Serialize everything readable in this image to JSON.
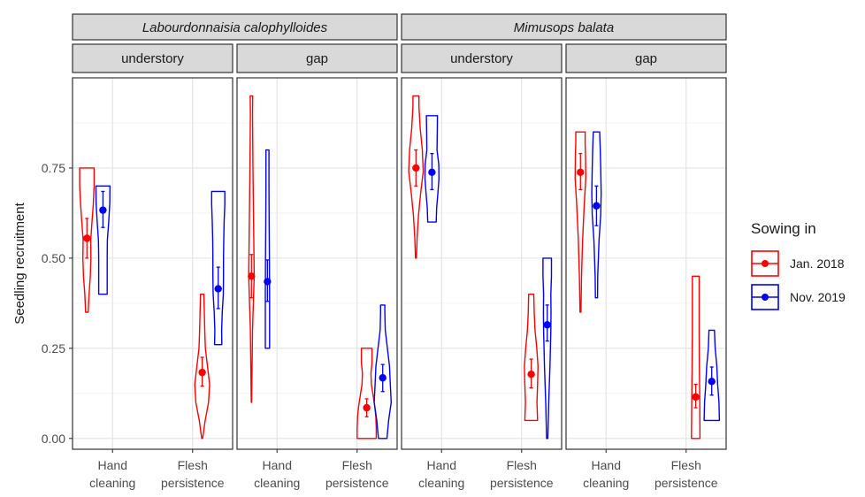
{
  "chart_data": {
    "type": "violin",
    "ylabel": "Seedling recruitment",
    "ylim": [
      -0.03,
      1.0
    ],
    "y_ticks": [
      {
        "value": 0.0,
        "label": "0.00"
      },
      {
        "value": 0.25,
        "label": "0.25"
      },
      {
        "value": 0.5,
        "label": "0.50"
      },
      {
        "value": 0.75,
        "label": "0.75"
      }
    ],
    "categories": [
      {
        "line1": "Hand",
        "line2": "cleaning"
      },
      {
        "line1": "Flesh",
        "line2": "persistence"
      }
    ],
    "legend": {
      "title": "Sowing in",
      "placement": "right",
      "entries": [
        {
          "name": "Jan. 2018",
          "color": "#ff0000"
        },
        {
          "name": "Nov. 2019",
          "color": "#0000ff"
        }
      ]
    },
    "grid": true,
    "species": [
      {
        "name": "Labourdonnaisia calophylloides",
        "italic": true
      },
      {
        "name": "Mimusops balata",
        "italic": true
      }
    ],
    "panels": [
      {
        "species": 0,
        "habitat": "understory",
        "violins": [
          {
            "category": 0,
            "series": 0,
            "min": 0.35,
            "max": 0.75,
            "mean": 0.555,
            "err_low": 0.5,
            "err_high": 0.61,
            "profile": [
              [
                0.35,
                0.06
              ],
              [
                0.4,
                0.1
              ],
              [
                0.45,
                0.16
              ],
              [
                0.5,
                0.19
              ],
              [
                0.55,
                0.18
              ],
              [
                0.6,
                0.24
              ],
              [
                0.65,
                0.3
              ],
              [
                0.7,
                0.34
              ],
              [
                0.75,
                0.34
              ]
            ]
          },
          {
            "category": 0,
            "series": 1,
            "min": 0.4,
            "max": 0.7,
            "mean": 0.633,
            "err_low": 0.585,
            "err_high": 0.685,
            "profile": [
              [
                0.4,
                0.2
              ],
              [
                0.45,
                0.2
              ],
              [
                0.5,
                0.2
              ],
              [
                0.55,
                0.21
              ],
              [
                0.6,
                0.27
              ],
              [
                0.65,
                0.32
              ],
              [
                0.7,
                0.33
              ]
            ]
          },
          {
            "category": 1,
            "series": 0,
            "min": 0.0,
            "max": 0.4,
            "mean": 0.183,
            "err_low": 0.145,
            "err_high": 0.225,
            "profile": [
              [
                0.0,
                0.02
              ],
              [
                0.05,
                0.14
              ],
              [
                0.1,
                0.3
              ],
              [
                0.15,
                0.35
              ],
              [
                0.2,
                0.25
              ],
              [
                0.25,
                0.15
              ],
              [
                0.3,
                0.12
              ],
              [
                0.35,
                0.1
              ],
              [
                0.4,
                0.08
              ]
            ]
          },
          {
            "category": 1,
            "series": 1,
            "min": 0.26,
            "max": 0.685,
            "mean": 0.415,
            "err_low": 0.36,
            "err_high": 0.475,
            "profile": [
              [
                0.26,
                0.17
              ],
              [
                0.3,
                0.16
              ],
              [
                0.35,
                0.19
              ],
              [
                0.4,
                0.24
              ],
              [
                0.45,
                0.25
              ],
              [
                0.5,
                0.25
              ],
              [
                0.55,
                0.26
              ],
              [
                0.6,
                0.28
              ],
              [
                0.65,
                0.31
              ],
              [
                0.685,
                0.31
              ]
            ]
          }
        ]
      },
      {
        "species": 0,
        "habitat": "gap",
        "violins": [
          {
            "category": 0,
            "series": 0,
            "min": 0.1,
            "max": 0.95,
            "mean": 0.45,
            "err_low": 0.39,
            "err_high": 0.51,
            "profile": [
              [
                0.1,
                0.01
              ],
              [
                0.3,
                0.05
              ],
              [
                0.45,
                0.13
              ],
              [
                0.6,
                0.1
              ],
              [
                0.75,
                0.07
              ],
              [
                0.9,
                0.05
              ],
              [
                0.95,
                0.06
              ]
            ]
          },
          {
            "category": 0,
            "series": 1,
            "min": 0.25,
            "max": 0.8,
            "mean": 0.435,
            "err_low": 0.38,
            "err_high": 0.495,
            "profile": [
              [
                0.25,
                0.1
              ],
              [
                0.4,
                0.1
              ],
              [
                0.5,
                0.09
              ],
              [
                0.6,
                0.08
              ],
              [
                0.7,
                0.07
              ],
              [
                0.8,
                0.07
              ]
            ]
          },
          {
            "category": 1,
            "series": 0,
            "min": 0.0,
            "max": 0.25,
            "mean": 0.085,
            "err_low": 0.06,
            "err_high": 0.11,
            "profile": [
              [
                0.0,
                0.45
              ],
              [
                0.03,
                0.45
              ],
              [
                0.06,
                0.43
              ],
              [
                0.09,
                0.38
              ],
              [
                0.12,
                0.3
              ],
              [
                0.15,
                0.22
              ],
              [
                0.18,
                0.2
              ],
              [
                0.21,
                0.25
              ],
              [
                0.25,
                0.25
              ]
            ]
          },
          {
            "category": 1,
            "series": 1,
            "min": 0.0,
            "max": 0.37,
            "mean": 0.168,
            "err_low": 0.13,
            "err_high": 0.205,
            "profile": [
              [
                0.0,
                0.2
              ],
              [
                0.05,
                0.28
              ],
              [
                0.1,
                0.4
              ],
              [
                0.15,
                0.36
              ],
              [
                0.2,
                0.32
              ],
              [
                0.25,
                0.22
              ],
              [
                0.3,
                0.12
              ],
              [
                0.35,
                0.1
              ],
              [
                0.37,
                0.1
              ]
            ]
          }
        ]
      },
      {
        "species": 1,
        "habitat": "understory",
        "violins": [
          {
            "category": 0,
            "series": 0,
            "min": 0.5,
            "max": 0.95,
            "mean": 0.75,
            "err_low": 0.7,
            "err_high": 0.8,
            "profile": [
              [
                0.5,
                0.02
              ],
              [
                0.56,
                0.06
              ],
              [
                0.62,
                0.12
              ],
              [
                0.68,
                0.22
              ],
              [
                0.74,
                0.34
              ],
              [
                0.8,
                0.3
              ],
              [
                0.86,
                0.2
              ],
              [
                0.92,
                0.14
              ],
              [
                0.95,
                0.14
              ]
            ]
          },
          {
            "category": 0,
            "series": 1,
            "min": 0.6,
            "max": 0.895,
            "mean": 0.738,
            "err_low": 0.69,
            "err_high": 0.79,
            "profile": [
              [
                0.6,
                0.2
              ],
              [
                0.64,
                0.22
              ],
              [
                0.68,
                0.28
              ],
              [
                0.72,
                0.33
              ],
              [
                0.76,
                0.32
              ],
              [
                0.8,
                0.24
              ],
              [
                0.85,
                0.25
              ],
              [
                0.895,
                0.26
              ]
            ]
          },
          {
            "category": 1,
            "series": 0,
            "min": 0.05,
            "max": 0.4,
            "mean": 0.178,
            "err_low": 0.14,
            "err_high": 0.22,
            "profile": [
              [
                0.05,
                0.3
              ],
              [
                0.1,
                0.27
              ],
              [
                0.15,
                0.3
              ],
              [
                0.2,
                0.32
              ],
              [
                0.25,
                0.26
              ],
              [
                0.3,
                0.18
              ],
              [
                0.35,
                0.14
              ],
              [
                0.4,
                0.12
              ]
            ]
          },
          {
            "category": 1,
            "series": 1,
            "min": 0.0,
            "max": 0.5,
            "mean": 0.315,
            "err_low": 0.27,
            "err_high": 0.37,
            "profile": [
              [
                0.0,
                0.03
              ],
              [
                0.1,
                0.07
              ],
              [
                0.2,
                0.13
              ],
              [
                0.3,
                0.17
              ],
              [
                0.35,
                0.18
              ],
              [
                0.4,
                0.17
              ],
              [
                0.45,
                0.2
              ],
              [
                0.5,
                0.2
              ]
            ]
          }
        ]
      },
      {
        "species": 1,
        "habitat": "gap",
        "violins": [
          {
            "category": 0,
            "series": 0,
            "min": 0.35,
            "max": 0.85,
            "mean": 0.738,
            "err_low": 0.69,
            "err_high": 0.79,
            "profile": [
              [
                0.35,
                0.02
              ],
              [
                0.45,
                0.05
              ],
              [
                0.55,
                0.1
              ],
              [
                0.65,
                0.18
              ],
              [
                0.72,
                0.25
              ],
              [
                0.78,
                0.24
              ],
              [
                0.82,
                0.22
              ],
              [
                0.85,
                0.22
              ]
            ]
          },
          {
            "category": 0,
            "series": 1,
            "min": 0.39,
            "max": 0.85,
            "mean": 0.645,
            "err_low": 0.59,
            "err_high": 0.7,
            "profile": [
              [
                0.39,
                0.05
              ],
              [
                0.45,
                0.06
              ],
              [
                0.55,
                0.12
              ],
              [
                0.62,
                0.2
              ],
              [
                0.68,
                0.22
              ],
              [
                0.75,
                0.2
              ],
              [
                0.8,
                0.18
              ],
              [
                0.85,
                0.15
              ]
            ]
          },
          {
            "category": 1,
            "series": 0,
            "min": 0.0,
            "max": 0.45,
            "mean": 0.115,
            "err_low": 0.085,
            "err_high": 0.15,
            "profile": [
              [
                0.0,
                0.2
              ],
              [
                0.1,
                0.19
              ],
              [
                0.2,
                0.17
              ],
              [
                0.3,
                0.16
              ],
              [
                0.4,
                0.16
              ],
              [
                0.45,
                0.16
              ]
            ]
          },
          {
            "category": 1,
            "series": 1,
            "min": 0.05,
            "max": 0.3,
            "mean": 0.158,
            "err_low": 0.12,
            "err_high": 0.198,
            "profile": [
              [
                0.05,
                0.36
              ],
              [
                0.1,
                0.34
              ],
              [
                0.15,
                0.28
              ],
              [
                0.2,
                0.24
              ],
              [
                0.25,
                0.16
              ],
              [
                0.3,
                0.13
              ]
            ]
          }
        ]
      }
    ]
  }
}
